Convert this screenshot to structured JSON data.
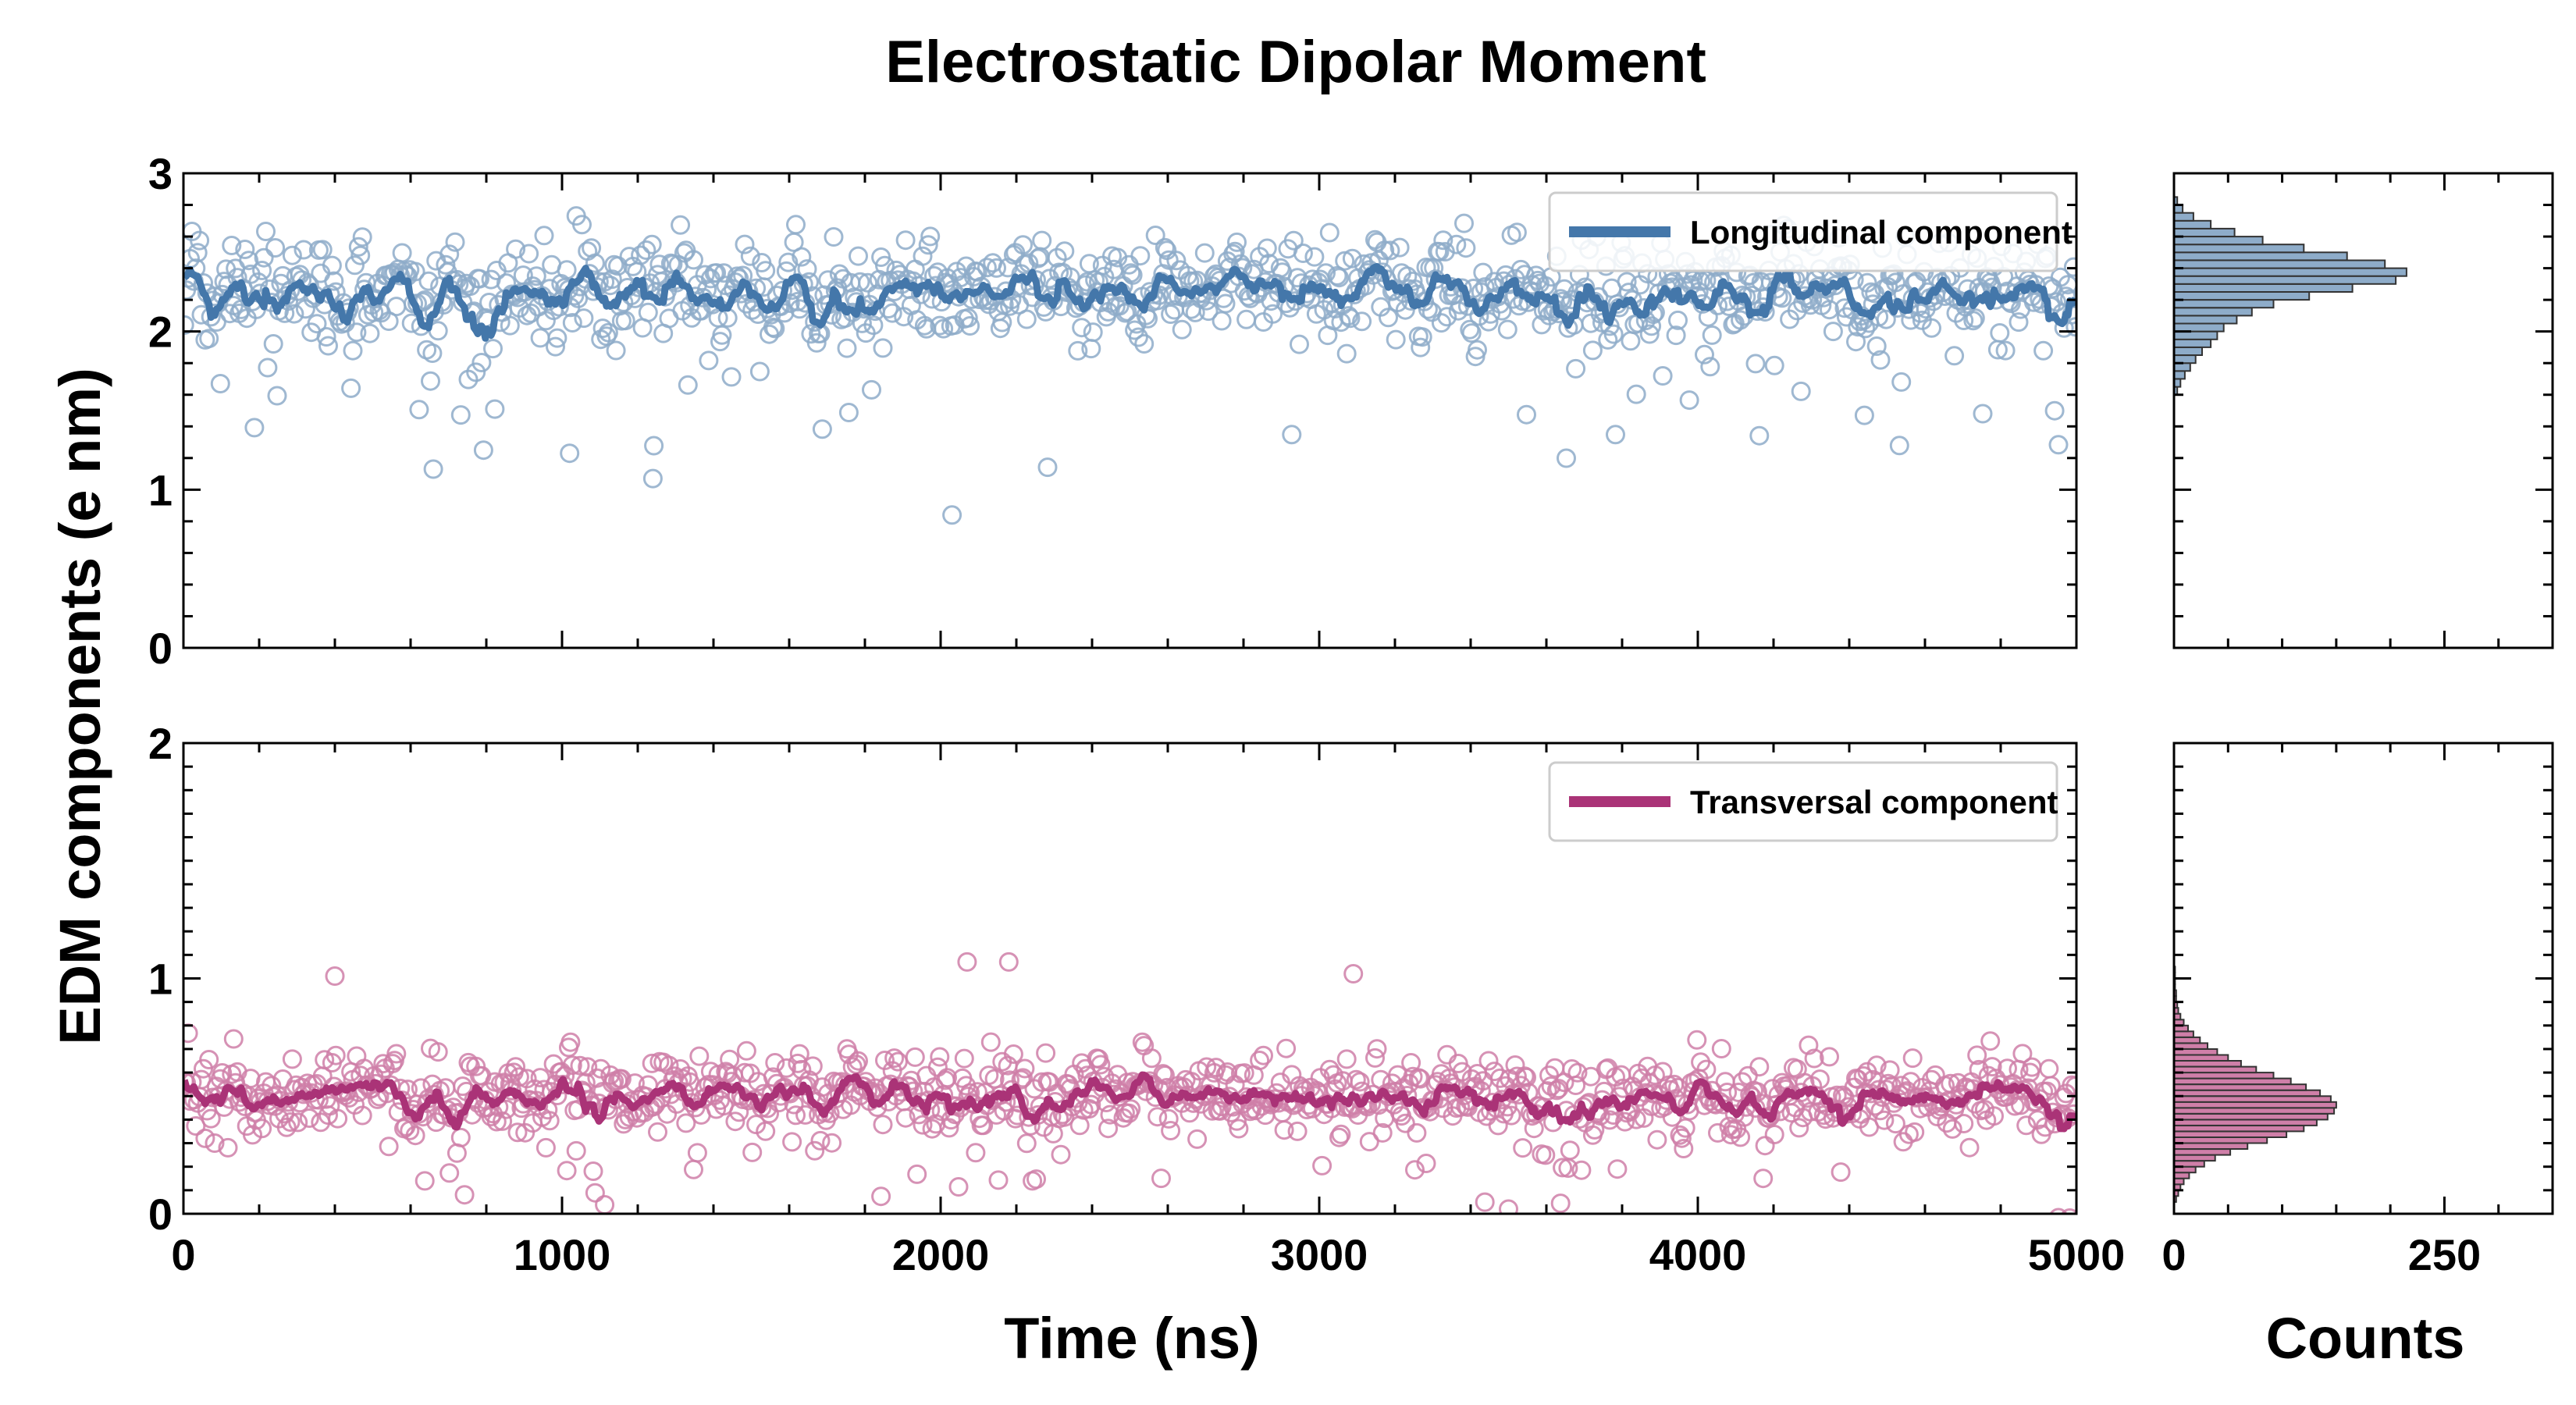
{
  "chart_data": [
    {
      "type": "scatter",
      "panel": "top-main",
      "title": "Electrostatic Dipolar Moment",
      "xlabel": "Time (ns)",
      "ylabel": "EDM components (e nm)",
      "xlim": [
        0,
        5000
      ],
      "ylim": [
        0,
        3
      ],
      "xticks": [
        0,
        1000,
        2000,
        3000,
        4000,
        5000
      ],
      "yticks": [
        0,
        1,
        2,
        3
      ],
      "legend_position": "top-right",
      "series": [
        {
          "name": "Longitudinal component",
          "kind": "scatter+rolling-mean",
          "color": "#4477aa",
          "marker_color": "#8eacc9",
          "mean": 2.25,
          "spread": 0.3,
          "n_points": 1000,
          "notable_outliers": [
            {
              "x": 660,
              "y": 1.13
            },
            {
              "x": 1240,
              "y": 1.07
            },
            {
              "x": 2030,
              "y": 0.84
            },
            {
              "x": 1020,
              "y": 1.23
            },
            {
              "x": 4440,
              "y": 1.47
            }
          ]
        }
      ]
    },
    {
      "type": "scatter",
      "panel": "bottom-main",
      "xlabel": "Time (ns)",
      "xlim": [
        0,
        5000
      ],
      "ylim": [
        0,
        2
      ],
      "xticks": [
        0,
        1000,
        2000,
        3000,
        4000,
        5000
      ],
      "yticks": [
        0,
        1,
        2
      ],
      "legend_position": "top-right",
      "series": [
        {
          "name": "Transversal component",
          "kind": "scatter+rolling-mean",
          "color": "#aa3377",
          "marker_color": "#cf7fa8",
          "mean": 0.5,
          "spread": 0.15,
          "n_points": 1000,
          "notable_outliers": [
            {
              "x": 2070,
              "y": 1.07
            },
            {
              "x": 2180,
              "y": 1.07
            },
            {
              "x": 3090,
              "y": 1.02
            },
            {
              "x": 3500,
              "y": 0.02
            },
            {
              "x": 400,
              "y": 1.01
            }
          ]
        }
      ]
    },
    {
      "type": "bar",
      "panel": "top-histogram",
      "orientation": "horizontal",
      "xlabel": "Counts",
      "xlim": [
        0,
        350
      ],
      "ylim": [
        0,
        3
      ],
      "xticks": [
        0,
        250
      ],
      "bin_width": 0.05,
      "bin_starts": [
        1.6,
        1.65,
        1.7,
        1.75,
        1.8,
        1.85,
        1.9,
        1.95,
        2.0,
        2.05,
        2.1,
        2.15,
        2.2,
        2.25,
        2.3,
        2.35,
        2.4,
        2.45,
        2.5,
        2.55,
        2.6,
        2.65,
        2.7,
        2.75,
        2.8
      ],
      "counts": [
        3,
        6,
        10,
        15,
        20,
        26,
        34,
        40,
        46,
        58,
        72,
        92,
        125,
        165,
        205,
        215,
        195,
        160,
        120,
        82,
        56,
        34,
        18,
        8,
        3
      ],
      "color": "#8eacc9"
    },
    {
      "type": "bar",
      "panel": "bottom-histogram",
      "orientation": "horizontal",
      "xlabel": "Counts",
      "xlim": [
        0,
        350
      ],
      "ylim": [
        0,
        2
      ],
      "xticks": [
        0,
        250
      ],
      "bin_width": 0.025,
      "bin_starts": [
        0.05,
        0.075,
        0.1,
        0.125,
        0.15,
        0.175,
        0.2,
        0.225,
        0.25,
        0.275,
        0.3,
        0.325,
        0.35,
        0.375,
        0.4,
        0.425,
        0.45,
        0.475,
        0.5,
        0.525,
        0.55,
        0.575,
        0.6,
        0.625,
        0.65,
        0.675,
        0.7,
        0.725,
        0.75,
        0.775,
        0.8,
        0.825,
        0.85,
        0.875,
        0.9,
        0.925,
        0.95,
        0.975,
        1.0,
        1.025
      ],
      "counts": [
        2,
        4,
        6,
        9,
        14,
        20,
        28,
        38,
        52,
        68,
        86,
        104,
        120,
        132,
        142,
        148,
        150,
        145,
        135,
        122,
        108,
        92,
        76,
        62,
        50,
        40,
        31,
        24,
        18,
        13,
        9,
        6,
        4,
        3,
        2,
        2,
        1,
        1,
        1,
        1
      ],
      "color": "#cf7fa8"
    }
  ]
}
